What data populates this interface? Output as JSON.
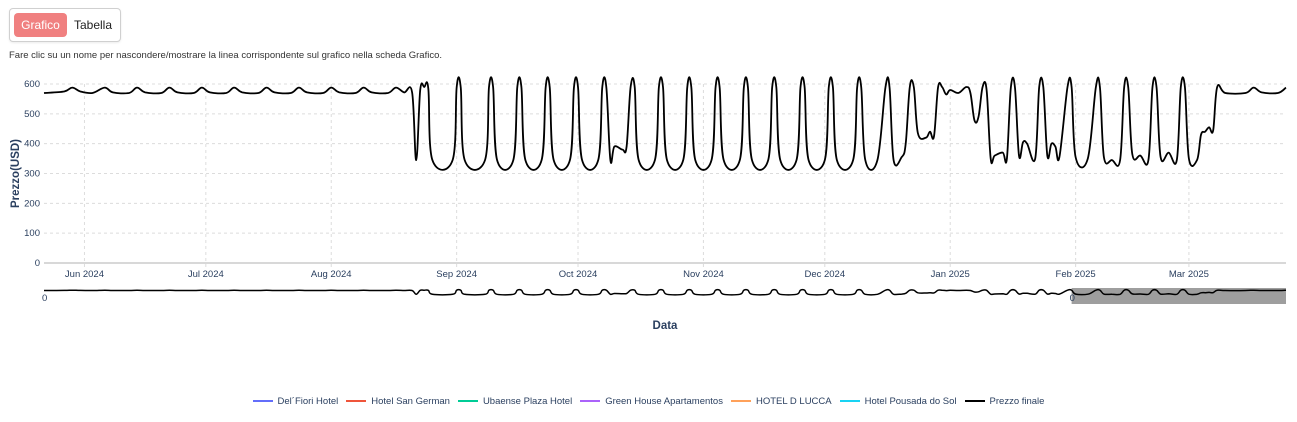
{
  "tabs": [
    {
      "label": "Grafico",
      "active": true
    },
    {
      "label": "Tabella",
      "active": false
    }
  ],
  "hint": "Fare clic su un nome per nascondere/mostrare la linea corrispondente sul grafico nella scheda Grafico.",
  "colors": {
    "final_price": "#000000",
    "grid": "#dcdcdc",
    "range_selection": "#9e9e9e",
    "active_tab": "#f08080"
  },
  "chart_data": {
    "type": "line",
    "xlabel": "Data",
    "ylabel": "Prezzo(USD)",
    "ylim": [
      0,
      600
    ],
    "y_ticks": [
      0,
      100,
      200,
      300,
      400,
      500,
      600
    ],
    "xlim": [
      "2024-05-22",
      "2025-03-25"
    ],
    "x_ticks": [
      {
        "date": "2024-06-01",
        "label": "Jun 2024"
      },
      {
        "date": "2024-07-01",
        "label": "Jul 2024"
      },
      {
        "date": "2024-08-01",
        "label": "Aug 2024"
      },
      {
        "date": "2024-09-01",
        "label": "Sep 2024"
      },
      {
        "date": "2024-10-01",
        "label": "Oct 2024"
      },
      {
        "date": "2024-11-01",
        "label": "Nov 2024"
      },
      {
        "date": "2024-12-01",
        "label": "Dec 2024"
      },
      {
        "date": "2025-01-01",
        "label": "Jan 2025"
      },
      {
        "date": "2025-02-01",
        "label": "Feb 2025"
      },
      {
        "date": "2025-03-01",
        "label": "Mar 2025"
      }
    ],
    "grid": true,
    "legend_position": "bottom",
    "range_slider": {
      "label": "0",
      "selected_from": "2025-02-01",
      "selected_to": "2025-03-25"
    },
    "series": [
      {
        "name": "Del´Fiori Hotel",
        "color": "#636efa",
        "values": []
      },
      {
        "name": "Hotel San German",
        "color": "#ef553b",
        "values": []
      },
      {
        "name": "Ubaense Plaza Hotel",
        "color": "#00cc96",
        "values": []
      },
      {
        "name": "Green House Apartamentos",
        "color": "#ab63fa",
        "values": []
      },
      {
        "name": "HOTEL D LUCCA",
        "color": "#ffa15a",
        "values": []
      },
      {
        "name": "Hotel Pousada do Sol",
        "color": "#19d3f3",
        "values": []
      },
      {
        "name": "Prezzo finale",
        "color": "#000000",
        "values": [
          [
            "2024-05-22",
            570
          ],
          [
            "2024-05-27",
            575
          ],
          [
            "2024-05-29",
            588
          ],
          [
            "2024-05-31",
            575
          ],
          [
            "2024-06-03",
            570
          ],
          [
            "2024-06-06",
            588
          ],
          [
            "2024-06-08",
            572
          ],
          [
            "2024-06-12",
            570
          ],
          [
            "2024-06-14",
            588
          ],
          [
            "2024-06-16",
            572
          ],
          [
            "2024-06-20",
            570
          ],
          [
            "2024-06-22",
            588
          ],
          [
            "2024-06-24",
            572
          ],
          [
            "2024-06-28",
            570
          ],
          [
            "2024-06-30",
            588
          ],
          [
            "2024-07-02",
            572
          ],
          [
            "2024-07-06",
            570
          ],
          [
            "2024-07-08",
            588
          ],
          [
            "2024-07-10",
            572
          ],
          [
            "2024-07-14",
            570
          ],
          [
            "2024-07-16",
            588
          ],
          [
            "2024-07-18",
            572
          ],
          [
            "2024-07-22",
            570
          ],
          [
            "2024-07-24",
            588
          ],
          [
            "2024-07-26",
            572
          ],
          [
            "2024-07-30",
            570
          ],
          [
            "2024-08-01",
            588
          ],
          [
            "2024-08-03",
            572
          ],
          [
            "2024-08-07",
            570
          ],
          [
            "2024-08-09",
            588
          ],
          [
            "2024-08-11",
            572
          ],
          [
            "2024-08-15",
            570
          ],
          [
            "2024-08-17",
            588
          ],
          [
            "2024-08-19",
            572
          ],
          [
            "2024-08-21",
            572
          ],
          [
            "2024-08-22",
            345
          ],
          [
            "2024-08-23",
            580
          ],
          [
            "2024-08-24",
            590
          ],
          [
            "2024-08-25",
            585
          ],
          [
            "2024-08-26",
            345
          ],
          [
            "2024-08-31",
            345
          ],
          [
            "2024-09-01",
            590
          ],
          [
            "2024-09-02",
            590
          ],
          [
            "2024-09-03",
            345
          ],
          [
            "2024-09-08",
            345
          ],
          [
            "2024-09-09",
            590
          ],
          [
            "2024-09-10",
            590
          ],
          [
            "2024-09-11",
            345
          ],
          [
            "2024-09-15",
            345
          ],
          [
            "2024-09-16",
            590
          ],
          [
            "2024-09-17",
            590
          ],
          [
            "2024-09-18",
            345
          ],
          [
            "2024-09-22",
            345
          ],
          [
            "2024-09-23",
            590
          ],
          [
            "2024-09-24",
            590
          ],
          [
            "2024-09-25",
            345
          ],
          [
            "2024-09-29",
            345
          ],
          [
            "2024-09-30",
            590
          ],
          [
            "2024-10-01",
            590
          ],
          [
            "2024-10-02",
            345
          ],
          [
            "2024-10-06",
            345
          ],
          [
            "2024-10-07",
            590
          ],
          [
            "2024-10-08",
            590
          ],
          [
            "2024-10-09",
            345
          ],
          [
            "2024-10-10",
            390
          ],
          [
            "2024-10-12",
            380
          ],
          [
            "2024-10-13",
            390
          ],
          [
            "2024-10-14",
            590
          ],
          [
            "2024-10-15",
            590
          ],
          [
            "2024-10-16",
            345
          ],
          [
            "2024-10-20",
            345
          ],
          [
            "2024-10-21",
            590
          ],
          [
            "2024-10-22",
            590
          ],
          [
            "2024-10-23",
            345
          ],
          [
            "2024-10-27",
            345
          ],
          [
            "2024-10-28",
            590
          ],
          [
            "2024-10-29",
            590
          ],
          [
            "2024-10-30",
            345
          ],
          [
            "2024-11-03",
            345
          ],
          [
            "2024-11-04",
            590
          ],
          [
            "2024-11-05",
            590
          ],
          [
            "2024-11-06",
            345
          ],
          [
            "2024-11-10",
            345
          ],
          [
            "2024-11-11",
            590
          ],
          [
            "2024-11-12",
            590
          ],
          [
            "2024-11-13",
            345
          ],
          [
            "2024-11-17",
            345
          ],
          [
            "2024-11-18",
            590
          ],
          [
            "2024-11-19",
            590
          ],
          [
            "2024-11-20",
            345
          ],
          [
            "2024-11-24",
            345
          ],
          [
            "2024-11-25",
            590
          ],
          [
            "2024-11-26",
            590
          ],
          [
            "2024-11-27",
            345
          ],
          [
            "2024-12-01",
            345
          ],
          [
            "2024-12-02",
            590
          ],
          [
            "2024-12-03",
            590
          ],
          [
            "2024-12-04",
            345
          ],
          [
            "2024-12-08",
            345
          ],
          [
            "2024-12-09",
            590
          ],
          [
            "2024-12-10",
            590
          ],
          [
            "2024-12-11",
            345
          ],
          [
            "2024-12-14",
            345
          ],
          [
            "2024-12-16",
            590
          ],
          [
            "2024-12-17",
            590
          ],
          [
            "2024-12-18",
            345
          ],
          [
            "2024-12-20",
            355
          ],
          [
            "2024-12-21",
            400
          ],
          [
            "2024-12-22",
            590
          ],
          [
            "2024-12-23",
            590
          ],
          [
            "2024-12-24",
            435
          ],
          [
            "2024-12-26",
            420
          ],
          [
            "2024-12-27",
            440
          ],
          [
            "2024-12-28",
            425
          ],
          [
            "2024-12-29",
            590
          ],
          [
            "2024-12-30",
            590
          ],
          [
            "2024-12-31",
            565
          ],
          [
            "2025-01-01",
            580
          ],
          [
            "2025-01-03",
            570
          ],
          [
            "2025-01-05",
            590
          ],
          [
            "2025-01-06",
            570
          ],
          [
            "2025-01-07",
            478
          ],
          [
            "2025-01-08",
            490
          ],
          [
            "2025-01-09",
            590
          ],
          [
            "2025-01-10",
            580
          ],
          [
            "2025-01-11",
            350
          ],
          [
            "2025-01-12",
            360
          ],
          [
            "2025-01-14",
            370
          ],
          [
            "2025-01-15",
            350
          ],
          [
            "2025-01-16",
            590
          ],
          [
            "2025-01-17",
            590
          ],
          [
            "2025-01-18",
            360
          ],
          [
            "2025-01-19",
            405
          ],
          [
            "2025-01-20",
            400
          ],
          [
            "2025-01-22",
            350
          ],
          [
            "2025-01-23",
            590
          ],
          [
            "2025-01-24",
            590
          ],
          [
            "2025-01-25",
            360
          ],
          [
            "2025-01-26",
            400
          ],
          [
            "2025-01-27",
            390
          ],
          [
            "2025-01-28",
            355
          ],
          [
            "2025-01-30",
            590
          ],
          [
            "2025-01-31",
            590
          ],
          [
            "2025-02-01",
            355
          ],
          [
            "2025-02-04",
            350
          ],
          [
            "2025-02-06",
            590
          ],
          [
            "2025-02-07",
            590
          ],
          [
            "2025-02-08",
            355
          ],
          [
            "2025-02-10",
            345
          ],
          [
            "2025-02-12",
            345
          ],
          [
            "2025-02-13",
            590
          ],
          [
            "2025-02-14",
            590
          ],
          [
            "2025-02-15",
            365
          ],
          [
            "2025-02-17",
            360
          ],
          [
            "2025-02-19",
            345
          ],
          [
            "2025-02-20",
            590
          ],
          [
            "2025-02-21",
            590
          ],
          [
            "2025-02-22",
            355
          ],
          [
            "2025-02-24",
            370
          ],
          [
            "2025-02-26",
            345
          ],
          [
            "2025-02-27",
            590
          ],
          [
            "2025-02-28",
            590
          ],
          [
            "2025-03-01",
            350
          ],
          [
            "2025-03-03",
            345
          ],
          [
            "2025-03-04",
            430
          ],
          [
            "2025-03-05",
            440
          ],
          [
            "2025-03-06",
            455
          ],
          [
            "2025-03-07",
            445
          ],
          [
            "2025-03-08",
            590
          ],
          [
            "2025-03-10",
            570
          ],
          [
            "2025-03-15",
            570
          ],
          [
            "2025-03-17",
            588
          ],
          [
            "2025-03-19",
            572
          ],
          [
            "2025-03-23",
            570
          ],
          [
            "2025-03-25",
            588
          ]
        ]
      }
    ]
  }
}
